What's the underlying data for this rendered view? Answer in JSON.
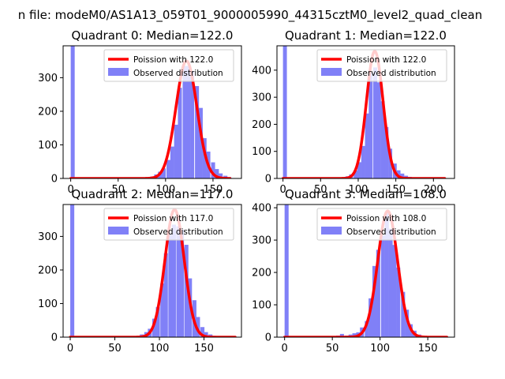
{
  "figure_title": "n file: modeM0/AS1A13_059T01_9000005990_44315cztM0_level2_quad_clean",
  "colors": {
    "hist": "#8080f7",
    "curve": "#ff0000",
    "axes": "#000000"
  },
  "chart_data": [
    {
      "type": "bar",
      "title": "Quadrant 0: Median=122.0",
      "xlim": [
        -8,
        180
      ],
      "ylim": [
        0,
        395
      ],
      "xticks": [
        0,
        50,
        100,
        150
      ],
      "yticks": [
        0,
        100,
        200,
        300
      ],
      "bin_width": 4.2,
      "bins": [
        {
          "x": 0,
          "y": 395
        },
        {
          "x": 79,
          "y": 3
        },
        {
          "x": 84,
          "y": 6
        },
        {
          "x": 88,
          "y": 12
        },
        {
          "x": 92,
          "y": 20
        },
        {
          "x": 96,
          "y": 30
        },
        {
          "x": 101,
          "y": 55
        },
        {
          "x": 105,
          "y": 95
        },
        {
          "x": 109,
          "y": 160
        },
        {
          "x": 113,
          "y": 270
        },
        {
          "x": 118,
          "y": 335
        },
        {
          "x": 122,
          "y": 335
        },
        {
          "x": 126,
          "y": 320
        },
        {
          "x": 131,
          "y": 275
        },
        {
          "x": 135,
          "y": 210
        },
        {
          "x": 139,
          "y": 120
        },
        {
          "x": 143,
          "y": 80
        },
        {
          "x": 148,
          "y": 48
        },
        {
          "x": 152,
          "y": 28
        },
        {
          "x": 156,
          "y": 15
        },
        {
          "x": 161,
          "y": 8
        },
        {
          "x": 165,
          "y": 4
        }
      ],
      "curve": {
        "mean": 122.0,
        "amp": 350,
        "sigma": 11.05,
        "x_range": [
          0,
          168
        ]
      },
      "legend": [
        "Poission with 122.0",
        "Observed distribution"
      ]
    },
    {
      "type": "bar",
      "title": "Quadrant 1: Median=122.0",
      "xlim": [
        -8,
        228
      ],
      "ylim": [
        0,
        490
      ],
      "xticks": [
        0,
        50,
        100,
        150,
        200
      ],
      "yticks": [
        0,
        100,
        200,
        300,
        400
      ],
      "bin_width": 5.2,
      "bins": [
        {
          "x": 0,
          "y": 490
        },
        {
          "x": 78,
          "y": 4
        },
        {
          "x": 83,
          "y": 8
        },
        {
          "x": 88,
          "y": 15
        },
        {
          "x": 94,
          "y": 30
        },
        {
          "x": 99,
          "y": 60
        },
        {
          "x": 104,
          "y": 120
        },
        {
          "x": 109,
          "y": 240
        },
        {
          "x": 114,
          "y": 390
        },
        {
          "x": 120,
          "y": 410
        },
        {
          "x": 125,
          "y": 355
        },
        {
          "x": 130,
          "y": 285
        },
        {
          "x": 135,
          "y": 190
        },
        {
          "x": 140,
          "y": 110
        },
        {
          "x": 146,
          "y": 55
        },
        {
          "x": 151,
          "y": 30
        },
        {
          "x": 156,
          "y": 18
        },
        {
          "x": 161,
          "y": 10
        },
        {
          "x": 166,
          "y": 6
        }
      ],
      "curve": {
        "mean": 122.0,
        "amp": 470,
        "sigma": 11.05,
        "x_range": [
          0,
          215
        ]
      },
      "legend": [
        "Poission with 122.0",
        "Observed distribution"
      ]
    },
    {
      "type": "bar",
      "title": "Quadrant 2: Median=117.0",
      "xlim": [
        -8,
        192
      ],
      "ylim": [
        0,
        395
      ],
      "xticks": [
        0,
        50,
        100,
        150
      ],
      "yticks": [
        0,
        100,
        200,
        300
      ],
      "bin_width": 4.5,
      "bins": [
        {
          "x": 0,
          "y": 395
        },
        {
          "x": 74,
          "y": 3
        },
        {
          "x": 78,
          "y": 8
        },
        {
          "x": 83,
          "y": 15
        },
        {
          "x": 87,
          "y": 25
        },
        {
          "x": 92,
          "y": 55
        },
        {
          "x": 96,
          "y": 90
        },
        {
          "x": 101,
          "y": 160
        },
        {
          "x": 105,
          "y": 250
        },
        {
          "x": 110,
          "y": 305
        },
        {
          "x": 114,
          "y": 335
        },
        {
          "x": 119,
          "y": 330
        },
        {
          "x": 123,
          "y": 320
        },
        {
          "x": 128,
          "y": 275
        },
        {
          "x": 132,
          "y": 175
        },
        {
          "x": 137,
          "y": 110
        },
        {
          "x": 141,
          "y": 60
        },
        {
          "x": 146,
          "y": 30
        },
        {
          "x": 150,
          "y": 15
        },
        {
          "x": 155,
          "y": 8
        },
        {
          "x": 159,
          "y": 4
        }
      ],
      "curve": {
        "mean": 117.0,
        "amp": 380,
        "sigma": 10.82,
        "x_range": [
          0,
          185
        ]
      },
      "legend": [
        "Poission with 117.0",
        "Observed distribution"
      ]
    },
    {
      "type": "bar",
      "title": "Quadrant 3: Median=108.0",
      "xlim": [
        -8,
        178
      ],
      "ylim": [
        0,
        410
      ],
      "xticks": [
        0,
        50,
        100,
        150
      ],
      "yticks": [
        0,
        100,
        200,
        300,
        400
      ],
      "bin_width": 4.2,
      "bins": [
        {
          "x": 0,
          "y": 410
        },
        {
          "x": 54,
          "y": 5
        },
        {
          "x": 58,
          "y": 10
        },
        {
          "x": 63,
          "y": 5
        },
        {
          "x": 67,
          "y": 8
        },
        {
          "x": 71,
          "y": 12
        },
        {
          "x": 75,
          "y": 15
        },
        {
          "x": 79,
          "y": 30
        },
        {
          "x": 84,
          "y": 50
        },
        {
          "x": 88,
          "y": 120
        },
        {
          "x": 92,
          "y": 220
        },
        {
          "x": 96,
          "y": 270
        },
        {
          "x": 101,
          "y": 315
        },
        {
          "x": 105,
          "y": 385
        },
        {
          "x": 109,
          "y": 335
        },
        {
          "x": 113,
          "y": 285
        },
        {
          "x": 117,
          "y": 215
        },
        {
          "x": 122,
          "y": 140
        },
        {
          "x": 126,
          "y": 85
        },
        {
          "x": 130,
          "y": 40
        },
        {
          "x": 134,
          "y": 20
        },
        {
          "x": 139,
          "y": 8
        },
        {
          "x": 143,
          "y": 4
        }
      ],
      "curve": {
        "mean": 108.0,
        "amp": 390,
        "sigma": 10.39,
        "x_range": [
          0,
          170
        ]
      },
      "legend": [
        "Poission with 108.0",
        "Observed distribution"
      ]
    }
  ]
}
